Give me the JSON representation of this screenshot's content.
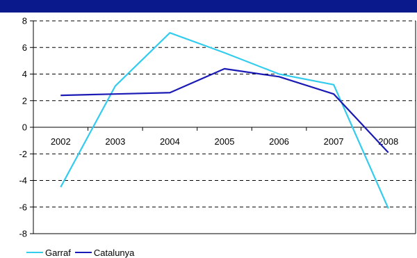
{
  "colors": {
    "top_bar": "#0a1a8c",
    "garraf": "#33ccee",
    "catalunya": "#1a1ab4"
  },
  "chart_data": {
    "type": "line",
    "title": "",
    "xlabel": "",
    "ylabel": "",
    "x": [
      "2002",
      "2003",
      "2004",
      "2005",
      "2006",
      "2007",
      "2008"
    ],
    "ylim": [
      -8,
      8
    ],
    "yticks": [
      "8",
      "6",
      "4",
      "2",
      "0",
      "-2",
      "-4",
      "-6",
      "-8"
    ],
    "grid": true,
    "legend_position": "bottom-left",
    "series": [
      {
        "name": "Garraf",
        "values": [
          -4.5,
          3.1,
          7.1,
          5.6,
          4.0,
          3.2,
          -6.1
        ]
      },
      {
        "name": "Catalunya",
        "values": [
          2.4,
          2.5,
          2.6,
          4.4,
          3.8,
          2.5,
          -1.9
        ]
      }
    ]
  }
}
